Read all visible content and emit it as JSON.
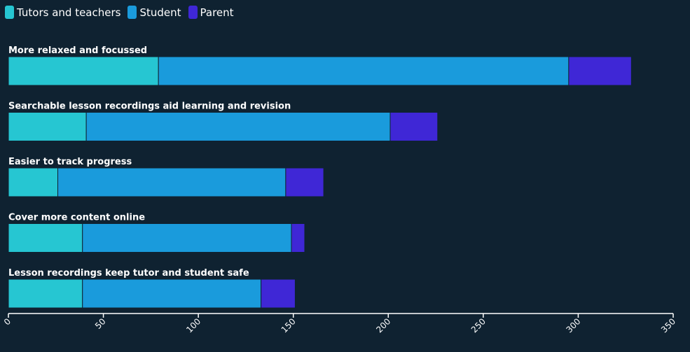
{
  "colors": {
    "background": "#0f2231",
    "axis": "#ffffff",
    "divider": "#0f2231"
  },
  "legend": [
    {
      "label": "Tutors and teachers",
      "color": "#26c6d2"
    },
    {
      "label": "Student",
      "color": "#1a9bdc"
    },
    {
      "label": "Parent",
      "color": "#3f27d6"
    }
  ],
  "chart_data": {
    "type": "bar",
    "orientation": "horizontal",
    "stacked": true,
    "categories": [
      "More relaxed and focussed",
      "Searchable lesson recordings aid learning and revision",
      "Easier to track progress",
      "Cover more content online",
      "Lesson recordings keep tutor and student safe"
    ],
    "series": [
      {
        "name": "Tutors and teachers",
        "color": "#26c6d2",
        "values": [
          79,
          41,
          26,
          39,
          39
        ]
      },
      {
        "name": "Student",
        "color": "#1a9bdc",
        "values": [
          216,
          160,
          120,
          110,
          94
        ]
      },
      {
        "name": "Parent",
        "color": "#3f27d6",
        "values": [
          33,
          25,
          20,
          7,
          18
        ]
      }
    ],
    "xlim": [
      0,
      350
    ],
    "xticks": [
      "0",
      "50",
      "100",
      "150",
      "200",
      "250",
      "300",
      "350"
    ],
    "grid": false,
    "legend_position": "top-left"
  }
}
